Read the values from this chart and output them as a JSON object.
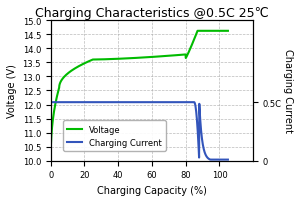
{
  "title": "Charging Characteristics @0.5C 25℃",
  "xlabel": "Charging Capacity (%)",
  "ylabel_left": "Voltage (V)",
  "ylabel_right": "Charging Current",
  "xlim": [
    0,
    120
  ],
  "ylim_left": [
    10.0,
    15.0
  ],
  "ylim_right": [
    0,
    1.2
  ],
  "xticks": [
    0,
    20,
    40,
    60,
    80,
    100
  ],
  "yticks_left": [
    10.0,
    10.5,
    11.0,
    11.5,
    12.0,
    12.5,
    13.0,
    13.5,
    14.0,
    14.5,
    15.0
  ],
  "yticks_right_vals": [
    0,
    0.5
  ],
  "yticks_right_labels": [
    "0",
    "0.5C"
  ],
  "voltage_color": "#00bb00",
  "current_color": "#3355bb",
  "grid_color": "#aaaaaa",
  "background_color": "#ffffff",
  "legend_labels": [
    "Voltage",
    "Charging Current"
  ],
  "title_fontsize": 9,
  "label_fontsize": 7,
  "tick_fontsize": 6,
  "legend_fontsize": 6
}
